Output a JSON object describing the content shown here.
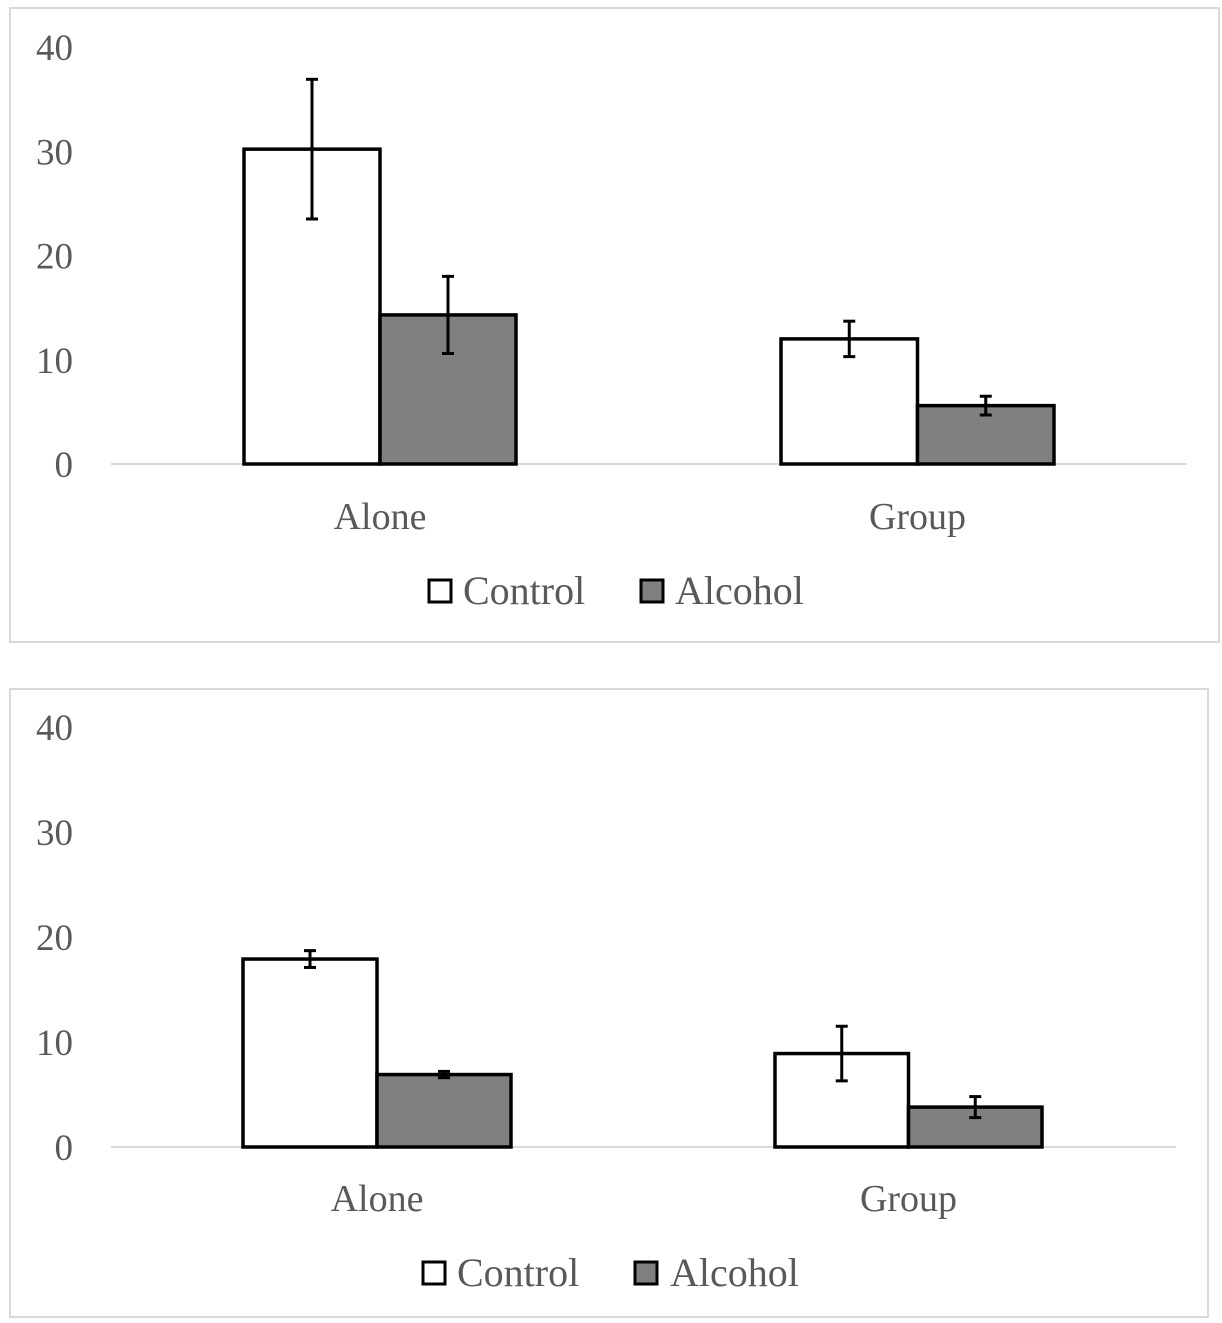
{
  "colors": {
    "control_fill": "#ffffff",
    "alcohol_fill": "#808080",
    "bar_stroke": "#000000",
    "axis": "#d9d9d9",
    "text": "#595959"
  },
  "chart_data": [
    {
      "type": "bar",
      "categories": [
        "Alone",
        "Group"
      ],
      "ylim": [
        0,
        40
      ],
      "yticks": [
        "0",
        "10",
        "20",
        "30",
        "40"
      ],
      "grid": false,
      "legend_position": "bottom",
      "error_bars": true,
      "series": [
        {
          "name": "Control",
          "values": [
            30.2,
            12.0
          ],
          "errors": [
            6.7,
            1.7
          ]
        },
        {
          "name": "Alcohol",
          "values": [
            14.3,
            5.6
          ],
          "errors": [
            3.7,
            0.9
          ]
        }
      ]
    },
    {
      "type": "bar",
      "categories": [
        "Alone",
        "Group"
      ],
      "ylim": [
        0,
        40
      ],
      "yticks": [
        "0",
        "10",
        "20",
        "30",
        "40"
      ],
      "grid": false,
      "legend_position": "bottom",
      "error_bars": true,
      "series": [
        {
          "name": "Control",
          "values": [
            17.9,
            8.9
          ],
          "errors": [
            0.8,
            2.6
          ]
        },
        {
          "name": "Alcohol",
          "values": [
            6.9,
            3.8
          ],
          "errors": [
            0.3,
            1.0
          ]
        }
      ]
    }
  ]
}
